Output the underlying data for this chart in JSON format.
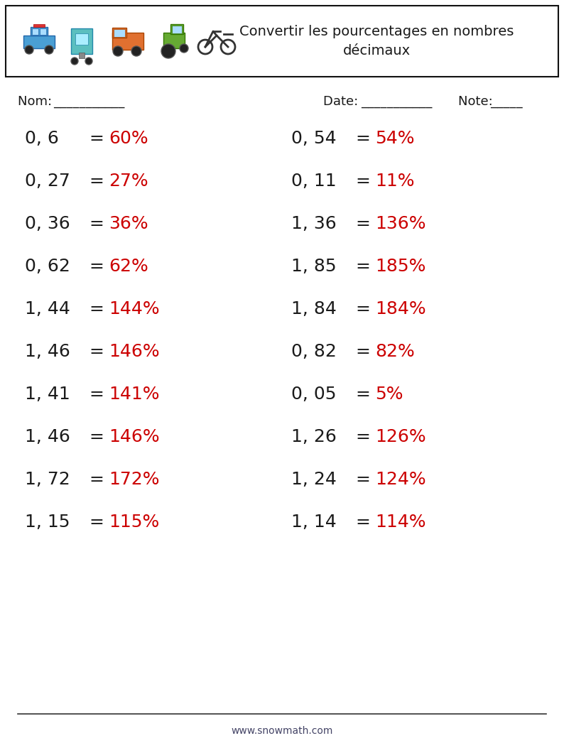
{
  "title": "Convertir les pourcentages en nombres\ndécimaux",
  "left_items": [
    [
      "0, 6",
      " = ",
      "60%"
    ],
    [
      "0, 27",
      " = ",
      "27%"
    ],
    [
      "0, 36",
      " = ",
      "36%"
    ],
    [
      "0, 62",
      " = ",
      "62%"
    ],
    [
      "1, 44",
      " = ",
      "144%"
    ],
    [
      "1, 46",
      " = ",
      "146%"
    ],
    [
      "1, 41",
      " = ",
      "141%"
    ],
    [
      "1, 46",
      " = ",
      "146%"
    ],
    [
      "1, 72",
      " = ",
      "172%"
    ],
    [
      "1, 15",
      " = ",
      "115%"
    ]
  ],
  "right_items": [
    [
      "0, 54",
      " = ",
      "54%"
    ],
    [
      "0, 11",
      " = ",
      "11%"
    ],
    [
      "1, 36",
      " = ",
      "136%"
    ],
    [
      "1, 85",
      " = ",
      "185%"
    ],
    [
      "1, 84",
      " = ",
      "184%"
    ],
    [
      "0, 82",
      " = ",
      "82%"
    ],
    [
      "0, 05",
      " = ",
      "5%"
    ],
    [
      "1, 26",
      " = ",
      "126%"
    ],
    [
      "1, 24",
      " = ",
      "124%"
    ],
    [
      "1, 14",
      " = ",
      "114%"
    ]
  ],
  "black_color": "#1a1a1a",
  "red_color": "#cc0000",
  "dark_color": "#333333",
  "footer_color": "#444466",
  "text_color": "#1a1a1a",
  "footer_text": "www.snowmath.com",
  "nom_label": "Nom: ",
  "nom_line": "___________",
  "date_label": "Date: ",
  "date_line": "___________",
  "note_label": "Note: ",
  "note_line": "_____",
  "background_color": "#ffffff",
  "header_box_color": "#111111",
  "font_size_questions": 18,
  "font_size_header_title": 14,
  "font_size_labels": 13,
  "font_size_footer": 10
}
